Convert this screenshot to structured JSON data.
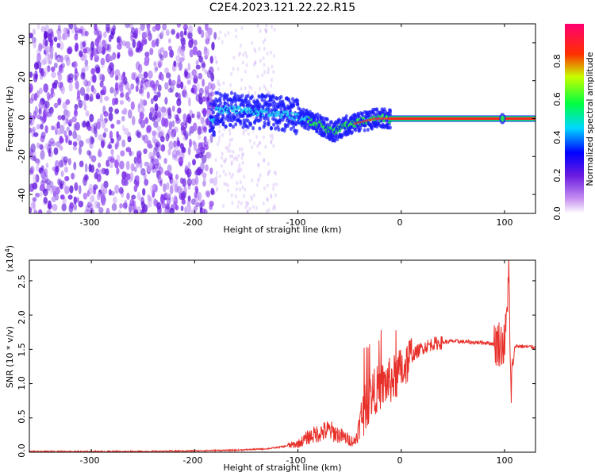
{
  "title": "C2E4.2023.121.22.22.R15",
  "chart_data": [
    {
      "type": "heatmap",
      "xlabel": "Height of straight line (km)",
      "ylabel": "Frequency (Hz)",
      "xlim": [
        -360,
        130
      ],
      "ylim": [
        -50,
        50
      ],
      "x_ticks": [
        "-300",
        "-200",
        "-100",
        "0",
        "100"
      ],
      "y_ticks": [
        "-40",
        "-20",
        "0",
        "20",
        "40"
      ],
      "colorbar_label": "Normalized spectral amplitude",
      "colorbar_range": [
        0.0,
        1.0
      ],
      "colorbar_ticks": [
        "0.0",
        "0.2",
        "0.4",
        "0.6",
        "0.8"
      ],
      "colormap": [
        "#ffffff",
        "#8a2be2",
        "#0000ff",
        "#00ffff",
        "#00ff00",
        "#ffff00",
        "#ff0000",
        "#ff0080"
      ],
      "grid": false,
      "centroid_track": [
        {
          "x": -180,
          "y": 5
        },
        {
          "x": -150,
          "y": 4
        },
        {
          "x": -120,
          "y": 3
        },
        {
          "x": -100,
          "y": 1
        },
        {
          "x": -80,
          "y": -3
        },
        {
          "x": -65,
          "y": -7
        },
        {
          "x": -55,
          "y": -4
        },
        {
          "x": -40,
          "y": -2
        },
        {
          "x": -25,
          "y": 0
        },
        {
          "x": -10,
          "y": 0
        },
        {
          "x": 0,
          "y": 0
        },
        {
          "x": 100,
          "y": 0
        },
        {
          "x": 130,
          "y": 0
        }
      ],
      "noise_region_x": [
        -360,
        -180
      ]
    },
    {
      "type": "line",
      "xlabel": "Height of straight line (km)",
      "ylabel": "SNR (10 * v/v)",
      "multiplier": "(x10",
      "multiplier_exp": "4",
      "multiplier_close": ")",
      "xlim": [
        -360,
        130
      ],
      "ylim": [
        0,
        2.8
      ],
      "x_ticks": [
        "-300",
        "-200",
        "-100",
        "0",
        "100"
      ],
      "y_ticks": [
        "0.0",
        "0.5",
        "1.0",
        "1.5",
        "2.0",
        "2.5"
      ],
      "grid": false,
      "line_color": "#e8302a",
      "series": [
        {
          "x": [
            -360,
            -300,
            -250,
            -200,
            -160,
            -130,
            -115,
            -100,
            -90,
            -80,
            -70,
            -60,
            -50,
            -45,
            -40,
            -35,
            -30,
            -25,
            -20,
            -15,
            -10,
            -5,
            0,
            10,
            20,
            30,
            40,
            50,
            60,
            70,
            80,
            90,
            95,
            100,
            102,
            104,
            106,
            110,
            120,
            130
          ],
          "y": [
            0.01,
            0.01,
            0.01,
            0.02,
            0.03,
            0.05,
            0.08,
            0.12,
            0.22,
            0.28,
            0.32,
            0.25,
            0.18,
            0.15,
            0.4,
            0.65,
            0.8,
            0.9,
            0.95,
            1.0,
            1.05,
            1.1,
            1.2,
            1.4,
            1.52,
            1.58,
            1.6,
            1.62,
            1.61,
            1.6,
            1.6,
            1.58,
            1.6,
            1.55,
            1.9,
            2.75,
            0.85,
            1.55,
            1.54,
            1.53
          ]
        }
      ]
    }
  ]
}
